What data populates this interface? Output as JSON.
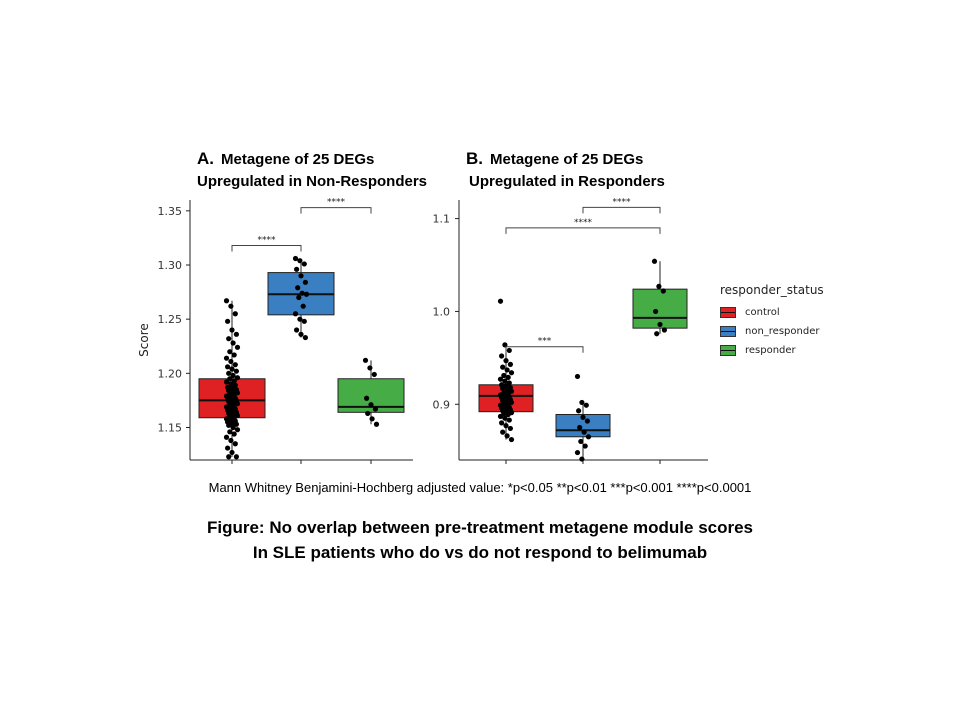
{
  "chart_data": [
    {
      "type": "box",
      "panel_letter": "A.",
      "title_line1": "Metagene of 25 DEGs",
      "title_line2": "Upregulated in Non-Responders",
      "ylabel": "Score",
      "xlabel": "",
      "ylim": [
        1.12,
        1.36
      ],
      "yticks": [
        "1.15",
        "1.20",
        "1.25",
        "1.30",
        "1.35"
      ],
      "ytick_values": [
        1.15,
        1.2,
        1.25,
        1.3,
        1.35
      ],
      "categories": [
        "control",
        "non_responder",
        "responder"
      ],
      "boxes": [
        {
          "group": "control",
          "q1": 1.159,
          "median": 1.175,
          "q3": 1.195,
          "whisker_low": 1.123,
          "whisker_high": 1.267
        },
        {
          "group": "non_responder",
          "q1": 1.254,
          "median": 1.273,
          "q3": 1.293,
          "whisker_low": 1.233,
          "whisker_high": 1.306
        },
        {
          "group": "responder",
          "q1": 1.164,
          "median": 1.169,
          "q3": 1.195,
          "whisker_low": 1.153,
          "whisker_high": 1.212
        }
      ],
      "points": [
        [
          1.267,
          1.262,
          1.255,
          1.248,
          1.24,
          1.236,
          1.232,
          1.228,
          1.224,
          1.22,
          1.217,
          1.214,
          1.211,
          1.208,
          1.206,
          1.204,
          1.202,
          1.2,
          1.198,
          1.196,
          1.195,
          1.193,
          1.192,
          1.19,
          1.189,
          1.187,
          1.186,
          1.185,
          1.184,
          1.183,
          1.182,
          1.181,
          1.18,
          1.179,
          1.178,
          1.177,
          1.176,
          1.176,
          1.175,
          1.174,
          1.173,
          1.172,
          1.171,
          1.17,
          1.169,
          1.168,
          1.167,
          1.166,
          1.165,
          1.164,
          1.163,
          1.162,
          1.161,
          1.16,
          1.159,
          1.158,
          1.157,
          1.156,
          1.155,
          1.154,
          1.153,
          1.152,
          1.15,
          1.148,
          1.146,
          1.144,
          1.141,
          1.138,
          1.135,
          1.131,
          1.127,
          1.123,
          1.123
        ],
        [
          1.306,
          1.304,
          1.301,
          1.296,
          1.29,
          1.284,
          1.279,
          1.274,
          1.273,
          1.27,
          1.262,
          1.255,
          1.25,
          1.248,
          1.24,
          1.236,
          1.233
        ],
        [
          1.212,
          1.205,
          1.199,
          1.177,
          1.171,
          1.167,
          1.163,
          1.158,
          1.153
        ]
      ],
      "brackets": [
        {
          "from": "control",
          "to": "non_responder",
          "y": 1.318,
          "label": "****"
        },
        {
          "from": "non_responder",
          "to": "responder",
          "y": 1.353,
          "label": "****"
        }
      ]
    },
    {
      "type": "box",
      "panel_letter": "B.",
      "title_line1": "Metagene of 25 DEGs",
      "title_line2": "Upregulated in Responders",
      "ylabel": "",
      "xlabel": "",
      "ylim": [
        0.84,
        1.12
      ],
      "yticks": [
        "0.9",
        "1.0",
        "1.1"
      ],
      "ytick_values": [
        0.9,
        1.0,
        1.1
      ],
      "categories": [
        "control",
        "non_responder",
        "responder"
      ],
      "boxes": [
        {
          "group": "control",
          "q1": 0.892,
          "median": 0.909,
          "q3": 0.921,
          "whisker_low": 0.862,
          "whisker_high": 0.964
        },
        {
          "group": "non_responder",
          "q1": 0.865,
          "median": 0.872,
          "q3": 0.889,
          "whisker_low": 0.84,
          "whisker_high": 0.902
        },
        {
          "group": "responder",
          "q1": 0.982,
          "median": 0.993,
          "q3": 1.024,
          "whisker_low": 0.976,
          "whisker_high": 1.054
        }
      ],
      "points": [
        [
          1.011,
          0.964,
          0.958,
          0.952,
          0.947,
          0.943,
          0.94,
          0.937,
          0.934,
          0.931,
          0.929,
          0.927,
          0.925,
          0.923,
          0.921,
          0.92,
          0.918,
          0.917,
          0.915,
          0.914,
          0.912,
          0.911,
          0.91,
          0.909,
          0.908,
          0.907,
          0.906,
          0.905,
          0.904,
          0.903,
          0.902,
          0.901,
          0.9,
          0.899,
          0.898,
          0.897,
          0.896,
          0.895,
          0.894,
          0.893,
          0.892,
          0.891,
          0.89,
          0.889,
          0.887,
          0.885,
          0.883,
          0.88,
          0.877,
          0.874,
          0.87,
          0.866,
          0.862
        ],
        [
          0.93,
          0.902,
          0.899,
          0.893,
          0.886,
          0.882,
          0.875,
          0.87,
          0.865,
          0.86,
          0.855,
          0.848,
          0.841
        ],
        [
          1.054,
          1.027,
          1.022,
          1.0,
          0.986,
          0.98,
          0.976
        ]
      ],
      "brackets": [
        {
          "from": "control",
          "to": "non_responder",
          "y": 0.962,
          "label": "***"
        },
        {
          "from": "control",
          "to": "responder",
          "y": 1.09,
          "label": "****"
        },
        {
          "from": "non_responder",
          "to": "responder",
          "y": 1.112,
          "label": "****"
        }
      ]
    }
  ],
  "legend": {
    "title": "responder_status",
    "items": [
      {
        "label": "control",
        "color": "#e02124"
      },
      {
        "label": "non_responder",
        "color": "#3a7fc1"
      },
      {
        "label": "responder",
        "color": "#46ac46"
      }
    ]
  },
  "colors": {
    "control": "#e02124",
    "non_responder": "#3a7fc1",
    "responder": "#46ac46"
  },
  "footnote": "Mann Whitney Benjamini-Hochberg adjusted value: *p<0.05 **p<0.01 ***p<0.001 ****p<0.0001",
  "caption": {
    "line1": "Figure: No overlap between pre-treatment metagene module scores",
    "line2": "In SLE patients who do vs do not respond to belimumab"
  }
}
